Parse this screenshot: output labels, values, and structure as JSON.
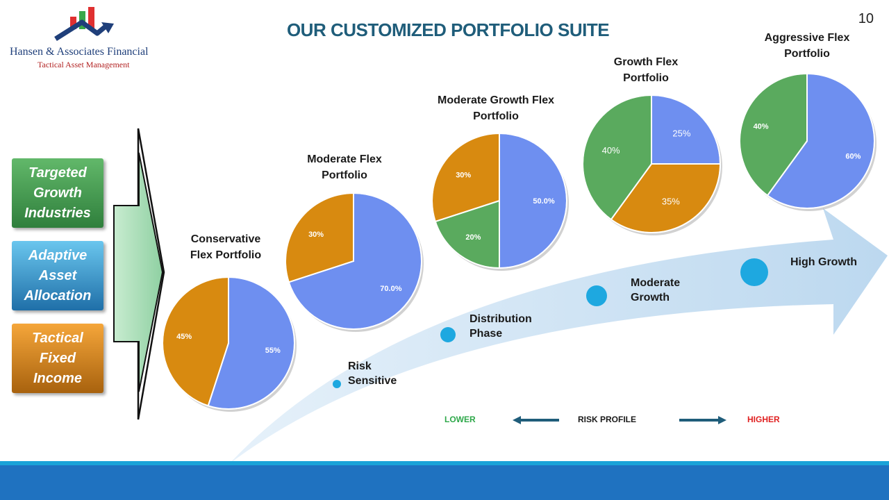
{
  "page": {
    "title": "OUR CUSTOMIZED PORTFOLIO SUITE",
    "page_number": "10"
  },
  "logo": {
    "name": "Hansen & Associates Financial",
    "tagline": "Tactical Asset Management"
  },
  "pillars": [
    {
      "label": "Targeted\nGrowth\nIndustries",
      "color": "#3f9a4c"
    },
    {
      "label": "Adaptive\nAsset\nAllocation",
      "color": "#2a88c4"
    },
    {
      "label": "Tactical\nFixed\nIncome",
      "color": "#d47f10"
    }
  ],
  "stages": [
    {
      "label": "Risk\nSensitive"
    },
    {
      "label": "Distribution\nPhase"
    },
    {
      "label": "Moderate\nGrowth"
    },
    {
      "label": "High Growth"
    }
  ],
  "risk_profile": {
    "lower": "LOWER",
    "label": "RISK PROFILE",
    "higher": "HIGHER",
    "lower_color": "#2ea84a",
    "higher_color": "#e02020"
  },
  "colors": {
    "blue": "#6e8ff0",
    "orange": "#d88a10",
    "green": "#5aaa5e",
    "title": "#1f5d7a",
    "footer": "#1f72c0"
  },
  "chart_data": [
    {
      "type": "pie",
      "title": "Conservative\nFlex Portfolio",
      "slices": [
        {
          "value": 55,
          "label": "55%",
          "color": "#6e8ff0"
        },
        {
          "value": 45,
          "label": "45%",
          "color": "#d88a10"
        }
      ]
    },
    {
      "type": "pie",
      "title": "Moderate Flex\nPortfolio",
      "slices": [
        {
          "value": 70,
          "label": "70.0%",
          "color": "#6e8ff0"
        },
        {
          "value": 30,
          "label": "30%",
          "color": "#d88a10"
        }
      ]
    },
    {
      "type": "pie",
      "title": "Moderate Growth Flex\nPortfolio",
      "slices": [
        {
          "value": 50,
          "label": "50.0%",
          "color": "#6e8ff0"
        },
        {
          "value": 20,
          "label": "20%",
          "color": "#5aaa5e"
        },
        {
          "value": 30,
          "label": "30%",
          "color": "#d88a10"
        }
      ]
    },
    {
      "type": "pie",
      "title": "Growth Flex\nPortfolio",
      "slices": [
        {
          "value": 25,
          "label": "25%",
          "color": "#6e8ff0"
        },
        {
          "value": 35,
          "label": "35%",
          "color": "#d88a10"
        },
        {
          "value": 40,
          "label": "40%",
          "color": "#5aaa5e"
        }
      ]
    },
    {
      "type": "pie",
      "title": "Aggressive Flex\nPortfolio",
      "slices": [
        {
          "value": 60,
          "label": "60%",
          "color": "#6e8ff0"
        },
        {
          "value": 40,
          "label": "40%",
          "color": "#5aaa5e"
        }
      ]
    }
  ]
}
